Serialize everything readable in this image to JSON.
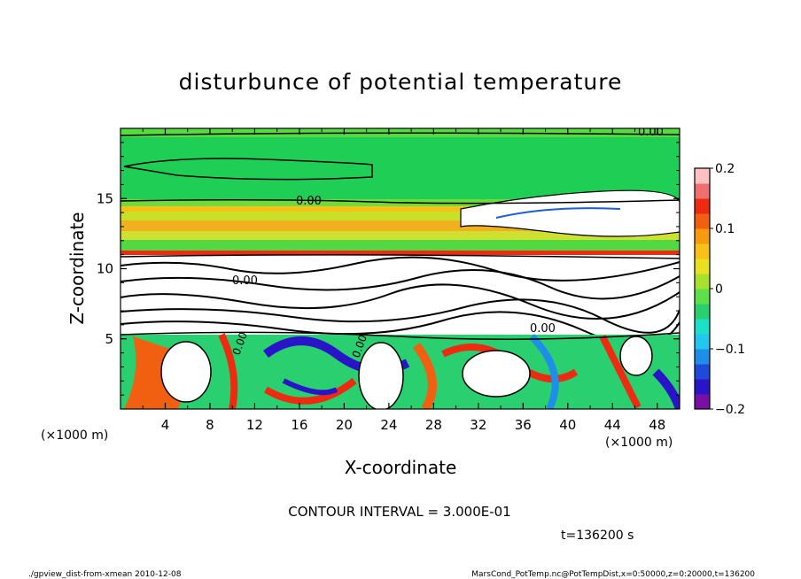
{
  "chart_data": {
    "type": "heatmap",
    "title": "disturbunce of potential temperature",
    "xlabel": "X-coordinate",
    "ylabel": "Z-coordinate",
    "x_unit": "(×1000 m)",
    "y_unit": "(×1000 m)",
    "xlim": [
      0,
      50
    ],
    "ylim": [
      0,
      20
    ],
    "x_ticks": [
      4,
      8,
      12,
      16,
      20,
      24,
      28,
      32,
      36,
      40,
      44,
      48
    ],
    "y_ticks": [
      5,
      10,
      15
    ],
    "colorbar": {
      "range": [
        -0.2,
        0.2
      ],
      "ticks": [
        0.2,
        0.1,
        0,
        -0.1,
        -0.2
      ],
      "tick_labels": [
        "0.2",
        "0.1",
        "0",
        "−0.1",
        "−0.2"
      ],
      "colors": [
        "#7a0fa8",
        "#2a14c8",
        "#1d4ad8",
        "#1f8ee8",
        "#22c6ee",
        "#1ce0c8",
        "#2ad070",
        "#5ee04a",
        "#a8e030",
        "#e8e020",
        "#f8c018",
        "#f89a10",
        "#f06010",
        "#ee2a10",
        "#f07070",
        "#fcc0c0"
      ]
    },
    "contour_labels": [
      "0.00",
      "0.00",
      "0.00",
      "0.00",
      "0.00",
      "0.00"
    ],
    "contour_interval_text": "CONTOUR INTERVAL = 3.000E-01",
    "time_text": "t=136200 s"
  },
  "footer": {
    "left": "./gpview_dist-from-xmean  2010-12-08",
    "right": "MarsCond_PotTemp.nc@PotTempDist,x=0:50000,z=0:20000,t=136200"
  }
}
